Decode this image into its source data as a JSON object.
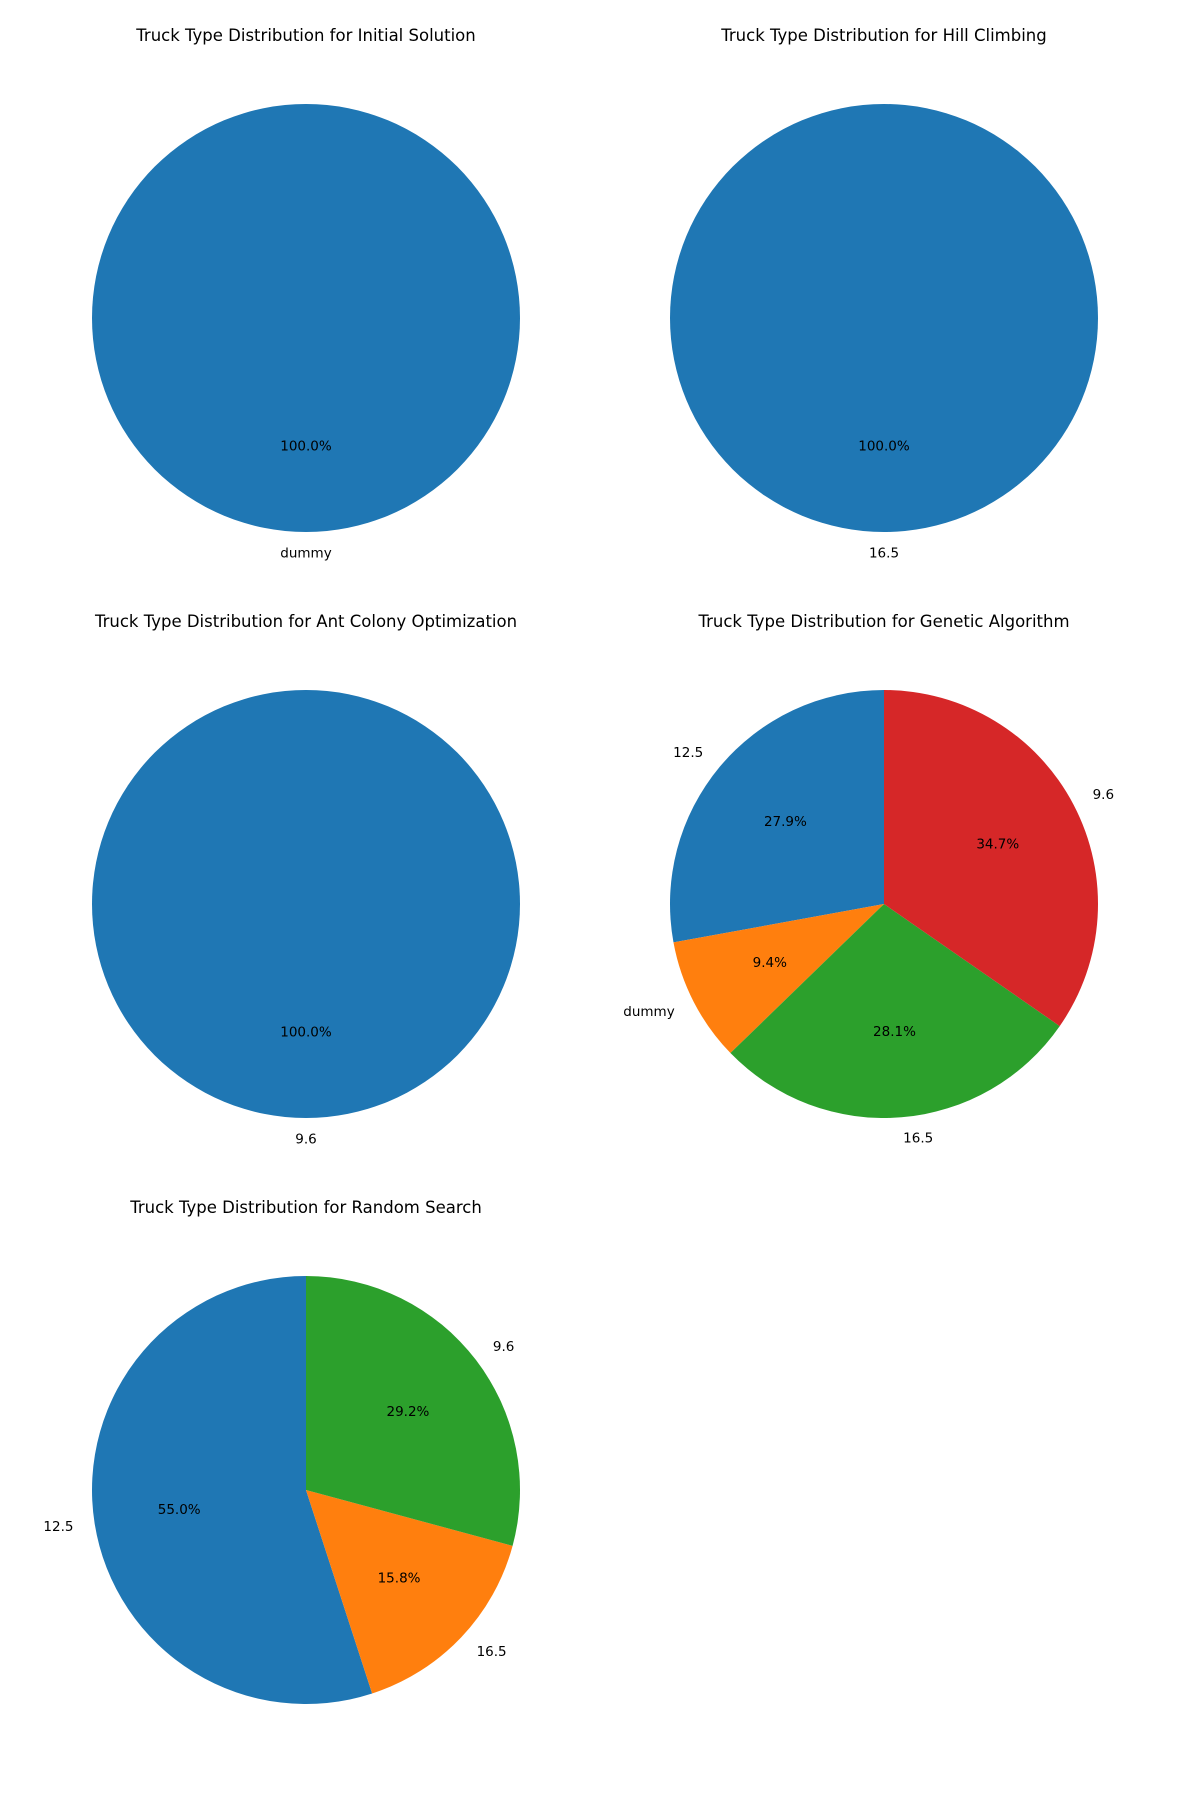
{
  "chart_data": [
    {
      "type": "pie",
      "title": "Truck Type Distribution for Initial Solution",
      "slices": [
        {
          "label": "dummy",
          "value": 100.0,
          "pct_label": "100.0%",
          "color": "#1f77b4"
        }
      ]
    },
    {
      "type": "pie",
      "title": "Truck Type Distribution for Hill Climbing",
      "slices": [
        {
          "label": "16.5",
          "value": 100.0,
          "pct_label": "100.0%",
          "color": "#1f77b4"
        }
      ]
    },
    {
      "type": "pie",
      "title": "Truck Type Distribution for Ant Colony Optimization",
      "slices": [
        {
          "label": "9.6",
          "value": 100.0,
          "pct_label": "100.0%",
          "color": "#1f77b4"
        }
      ]
    },
    {
      "type": "pie",
      "title": "Truck Type Distribution for Genetic Algorithm",
      "slices": [
        {
          "label": "12.5",
          "value": 27.9,
          "pct_label": "27.9%",
          "color": "#1f77b4"
        },
        {
          "label": "dummy",
          "value": 9.4,
          "pct_label": "9.4%",
          "color": "#ff7f0e"
        },
        {
          "label": "16.5",
          "value": 28.1,
          "pct_label": "28.1%",
          "color": "#2ca02c"
        },
        {
          "label": "9.6",
          "value": 34.7,
          "pct_label": "34.7%",
          "color": "#d62728"
        }
      ]
    },
    {
      "type": "pie",
      "title": "Truck Type Distribution for Random Search",
      "slices": [
        {
          "label": "12.5",
          "value": 55.0,
          "pct_label": "55.0%",
          "color": "#1f77b4"
        },
        {
          "label": "16.5",
          "value": 15.8,
          "pct_label": "15.8%",
          "color": "#ff7f0e"
        },
        {
          "label": "9.6",
          "value": 29.2,
          "pct_label": "29.2%",
          "color": "#2ca02c"
        }
      ]
    }
  ]
}
